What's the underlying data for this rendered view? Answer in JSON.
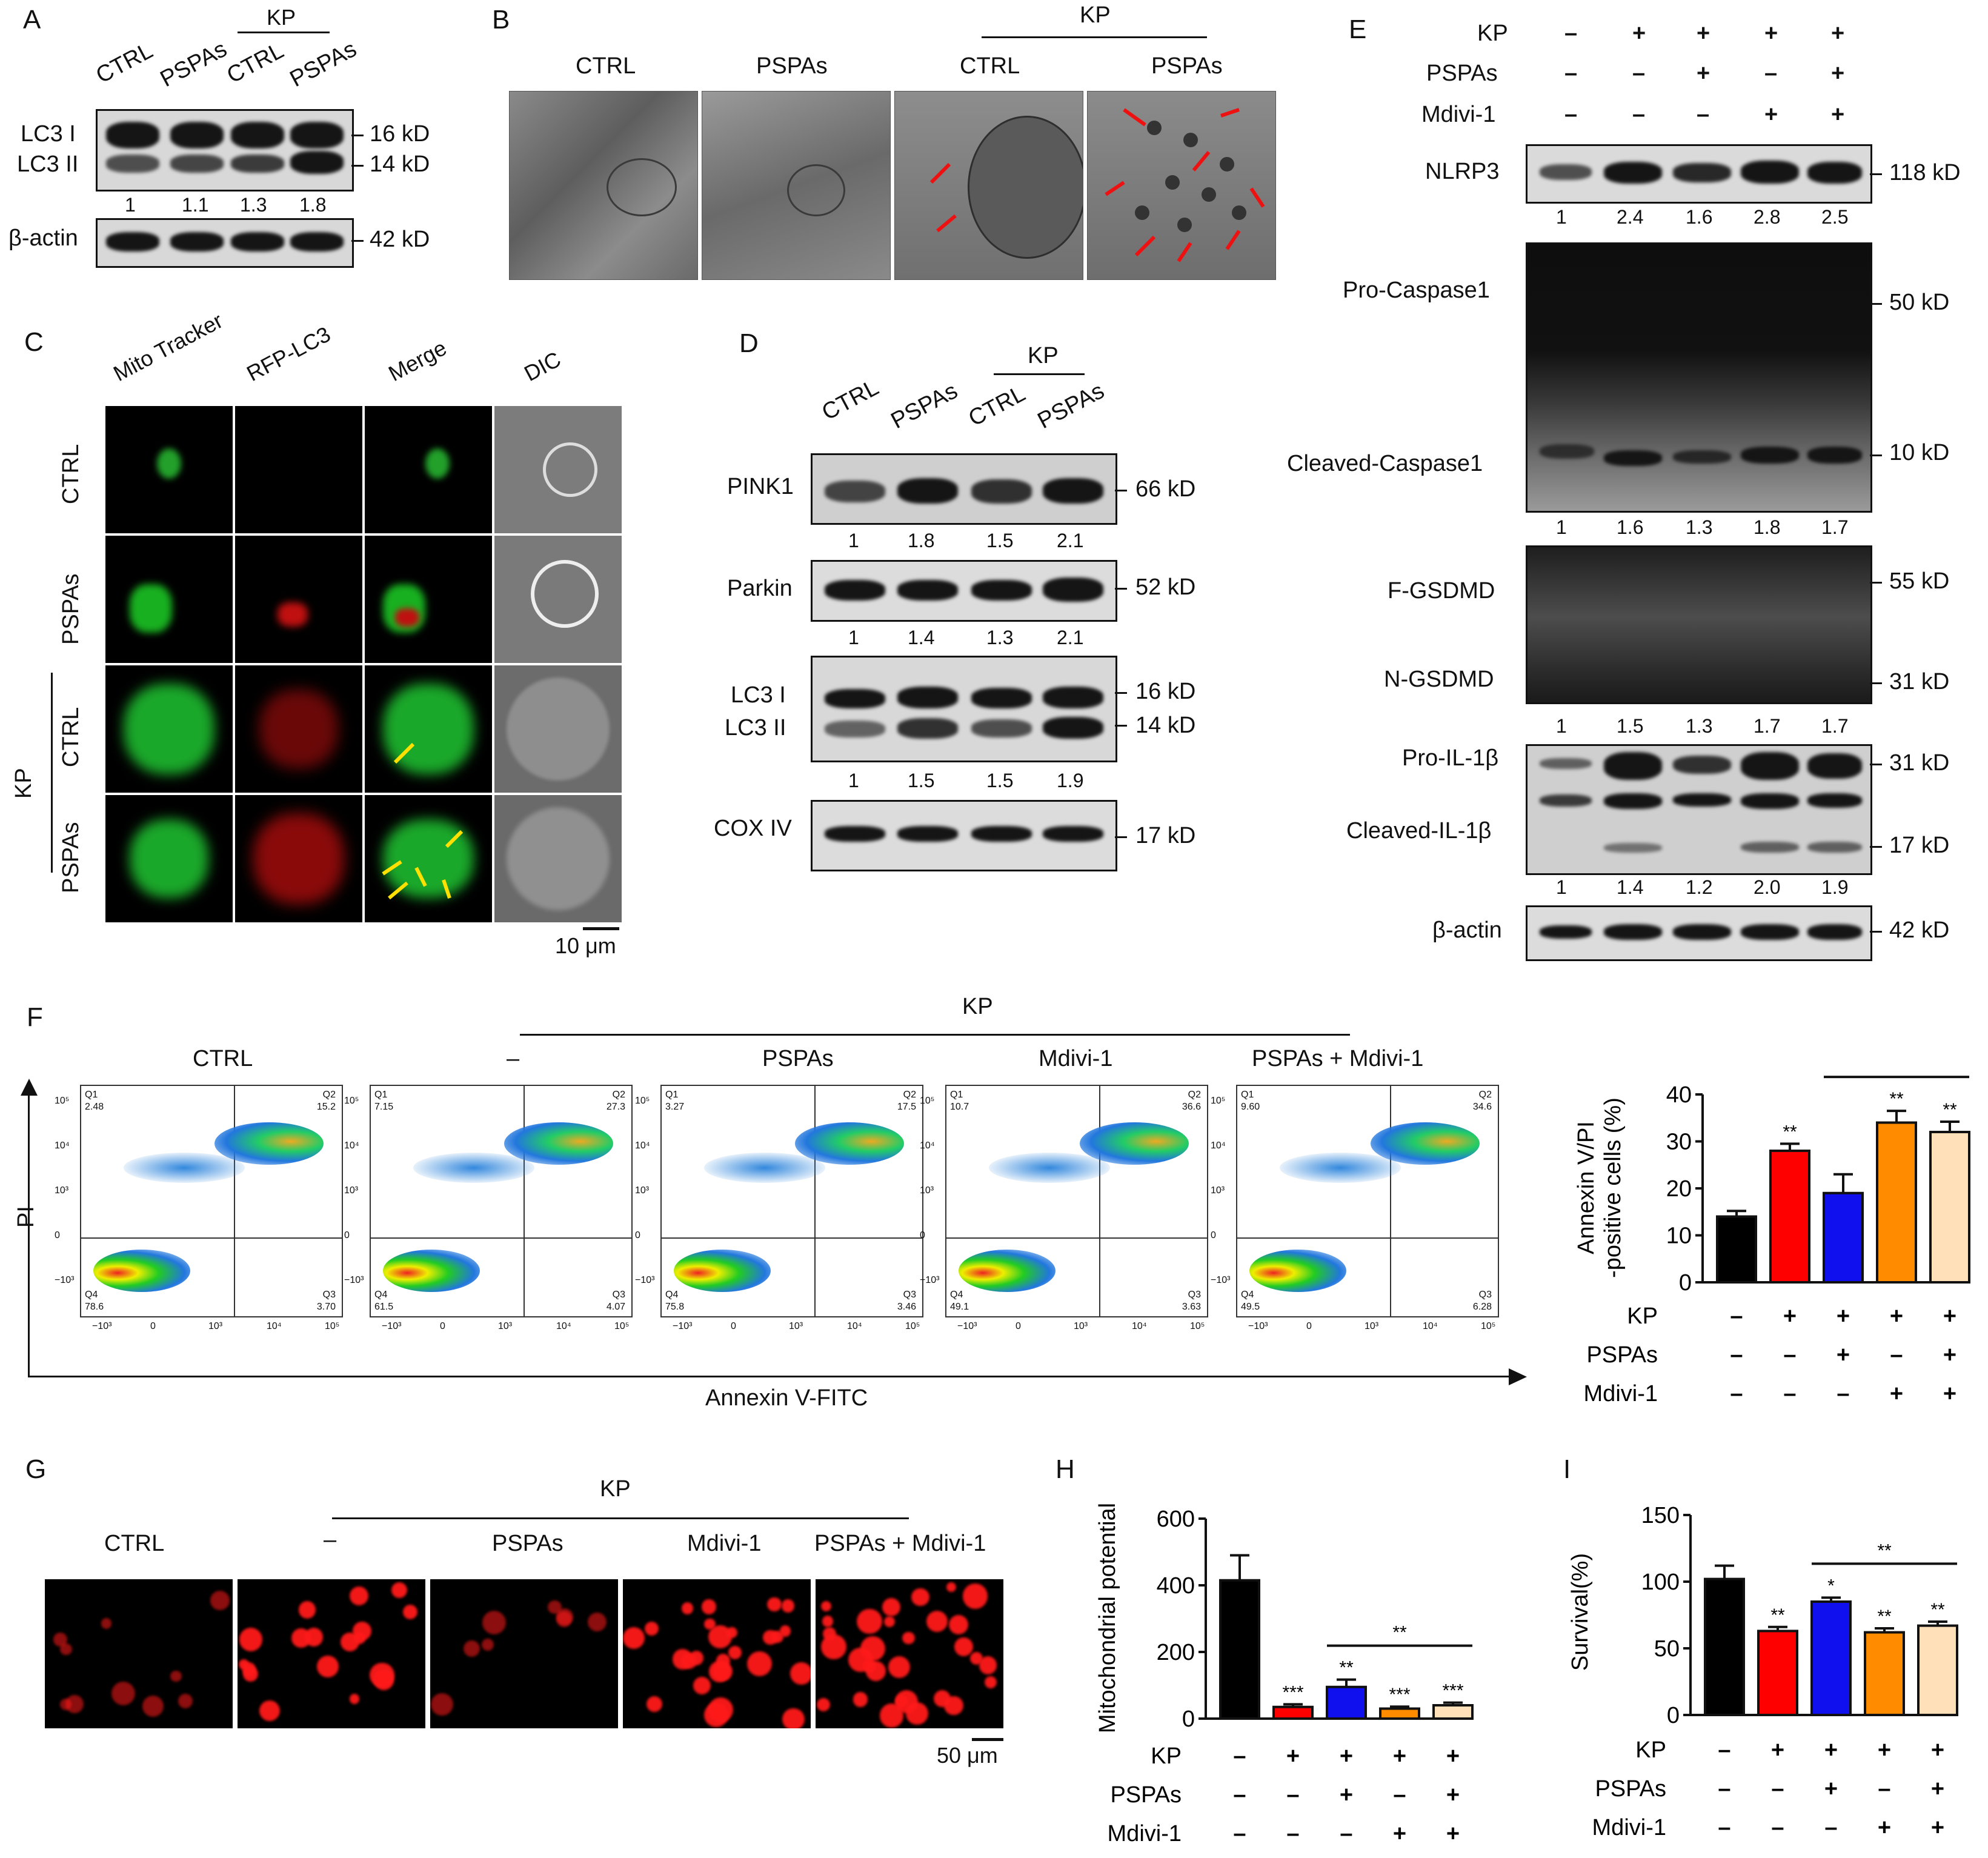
{
  "panel_a": {
    "letter": "A",
    "kp_label": "KP",
    "lanes": [
      "CTRL",
      "PSPAs",
      "CTRL",
      "PSPAs"
    ],
    "rows": [
      {
        "labels": [
          "LC3 I",
          "LC3 II"
        ],
        "kd": [
          "16 kD",
          "14 kD"
        ],
        "quant": [
          "1",
          "1.1",
          "1.3",
          "1.8"
        ]
      },
      {
        "labels": [
          "β-actin"
        ],
        "kd": [
          "42 kD"
        ],
        "quant": []
      }
    ]
  },
  "panel_b": {
    "letter": "B",
    "kp_label": "KP",
    "lanes": [
      "CTRL",
      "PSPAs",
      "CTRL",
      "PSPAs"
    ]
  },
  "panel_c": {
    "letter": "C",
    "cols": [
      "Mito Tracker",
      "RFP-LC3",
      "Merge",
      "DIC"
    ],
    "rows": [
      "CTRL",
      "PSPAs",
      "CTRL",
      "PSPAs"
    ],
    "kp_label": "KP",
    "scale": "10 μm"
  },
  "panel_d": {
    "letter": "D",
    "kp_label": "KP",
    "lanes": [
      "CTRL",
      "PSPAs",
      "CTRL",
      "PSPAs"
    ],
    "blots": [
      {
        "name": "PINK1",
        "kd": "66 kD",
        "quant": [
          "1",
          "1.8",
          "1.5",
          "2.1"
        ]
      },
      {
        "name": "Parkin",
        "kd": "52 kD",
        "quant": [
          "1",
          "1.4",
          "1.3",
          "2.1"
        ]
      },
      {
        "name1": "LC3 I",
        "name2": "LC3 II",
        "kd1": "16 kD",
        "kd2": "14 kD",
        "quant": [
          "1",
          "1.5",
          "1.5",
          "1.9"
        ]
      },
      {
        "name": "COX IV",
        "kd": "17 kD",
        "quant": []
      }
    ]
  },
  "panel_e": {
    "letter": "E",
    "conditions": [
      {
        "name": "KP",
        "signs": [
          "–",
          "+",
          "+",
          "+",
          "+"
        ]
      },
      {
        "name": "PSPAs",
        "signs": [
          "–",
          "–",
          "+",
          "–",
          "+"
        ]
      },
      {
        "name": "Mdivi-1",
        "signs": [
          "–",
          "–",
          "–",
          "+",
          "+"
        ]
      }
    ],
    "nlrp3": {
      "name": "NLRP3",
      "kd": "118 kD",
      "quant": [
        "1",
        "2.4",
        "1.6",
        "2.8",
        "2.5"
      ]
    },
    "casp": {
      "name1": "Pro-Caspase1",
      "name2": "Cleaved-Caspase1",
      "kd1": "50 kD",
      "kd2": "10 kD",
      "quant": [
        "1",
        "1.6",
        "1.3",
        "1.8",
        "1.7"
      ]
    },
    "gsdmd": {
      "name1": "F-GSDMD",
      "name2": "N-GSDMD",
      "kd1": "55 kD",
      "kd2": "31 kD",
      "quant": [
        "1",
        "1.5",
        "1.3",
        "1.7",
        "1.7"
      ]
    },
    "il1b": {
      "name1": "Pro-IL-1β",
      "name2": "Cleaved-IL-1β",
      "kd1": "31 kD",
      "kd2": "17 kD",
      "quant": [
        "1",
        "1.4",
        "1.2",
        "2.0",
        "1.9"
      ]
    },
    "actin": {
      "name": "β-actin",
      "kd": "42 kD"
    }
  },
  "panel_f": {
    "letter": "F",
    "kp_label": "KP",
    "plots": [
      {
        "title": "CTRL",
        "q1": "2.48",
        "q2": "15.2",
        "q3": "3.70",
        "q4": "78.6"
      },
      {
        "title": "–",
        "q1": "7.15",
        "q2": "27.3",
        "q3": "4.07",
        "q4": "61.5"
      },
      {
        "title": "PSPAs",
        "q1": "3.27",
        "q2": "17.5",
        "q3": "3.46",
        "q4": "75.8"
      },
      {
        "title": "Mdivi-1",
        "q1": "10.7",
        "q2": "36.6",
        "q3": "3.63",
        "q4": "49.1"
      },
      {
        "title": "PSPAs + Mdivi-1",
        "q1": "9.60",
        "q2": "34.6",
        "q3": "6.28",
        "q4": "49.5"
      }
    ],
    "xlabel": "Annexin V-FITC",
    "ylabel": "PI"
  },
  "panel_g": {
    "letter": "G",
    "kp_label": "KP",
    "cols": [
      "CTRL",
      "–",
      "PSPAs",
      "Mdivi-1",
      "PSPAs + Mdivi-1"
    ],
    "scale": "50 μm"
  },
  "panel_h_letter": "H",
  "panel_i_letter": "I",
  "chart_data": [
    {
      "type": "bar",
      "panel": "F",
      "ylabel": "Annexin V/PI\n-positive cells (%)",
      "ylim": [
        0,
        40
      ],
      "yticks": [
        0,
        10,
        20,
        30,
        40
      ],
      "values": [
        14,
        28,
        19,
        34,
        32
      ],
      "errors": [
        1.2,
        1.5,
        4,
        2.5,
        2.2
      ],
      "colors": [
        "#000000",
        "#ff0000",
        "#1010ee",
        "#ff8c00",
        "#ffe0b8"
      ],
      "stars": [
        "",
        "**",
        "",
        "**",
        "**"
      ],
      "bracket": {
        "from": 2,
        "to": 4,
        "label": "*"
      },
      "conditions": [
        {
          "name": "KP",
          "signs": [
            "–",
            "+",
            "+",
            "+",
            "+"
          ]
        },
        {
          "name": "PSPAs",
          "signs": [
            "–",
            "–",
            "+",
            "–",
            "+"
          ]
        },
        {
          "name": "Mdivi-1",
          "signs": [
            "–",
            "–",
            "–",
            "+",
            "+"
          ]
        }
      ]
    },
    {
      "type": "bar",
      "panel": "H",
      "ylabel": "Mitochondrial potential",
      "ylim": [
        0,
        600
      ],
      "yticks": [
        0,
        200,
        400,
        600
      ],
      "values": [
        415,
        35,
        95,
        30,
        40
      ],
      "errors": [
        75,
        8,
        22,
        6,
        8
      ],
      "colors": [
        "#000000",
        "#ff0000",
        "#1010ee",
        "#ff8c00",
        "#ffe0b8"
      ],
      "stars": [
        "",
        "***",
        "**",
        "***",
        "***"
      ],
      "bracket": {
        "from": 2,
        "to": 4,
        "label": "**"
      },
      "conditions": [
        {
          "name": "KP",
          "signs": [
            "–",
            "+",
            "+",
            "+",
            "+"
          ]
        },
        {
          "name": "PSPAs",
          "signs": [
            "–",
            "–",
            "+",
            "–",
            "+"
          ]
        },
        {
          "name": "Mdivi-1",
          "signs": [
            "–",
            "–",
            "–",
            "+",
            "+"
          ]
        }
      ]
    },
    {
      "type": "bar",
      "panel": "I",
      "ylabel": "Survival(%)",
      "ylim": [
        0,
        150
      ],
      "yticks": [
        0,
        50,
        100,
        150
      ],
      "values": [
        102,
        63,
        85,
        62,
        67
      ],
      "errors": [
        10,
        3,
        3,
        3,
        3
      ],
      "colors": [
        "#000000",
        "#ff0000",
        "#1010ee",
        "#ff8c00",
        "#ffe0b8"
      ],
      "stars": [
        "",
        "**",
        "*",
        "**",
        "**"
      ],
      "bracket": {
        "from": 2,
        "to": 4,
        "label": "**"
      },
      "conditions": [
        {
          "name": "KP",
          "signs": [
            "–",
            "+",
            "+",
            "+",
            "+"
          ]
        },
        {
          "name": "PSPAs",
          "signs": [
            "–",
            "–",
            "+",
            "–",
            "+"
          ]
        },
        {
          "name": "Mdivi-1",
          "signs": [
            "–",
            "–",
            "–",
            "+",
            "+"
          ]
        }
      ]
    }
  ]
}
